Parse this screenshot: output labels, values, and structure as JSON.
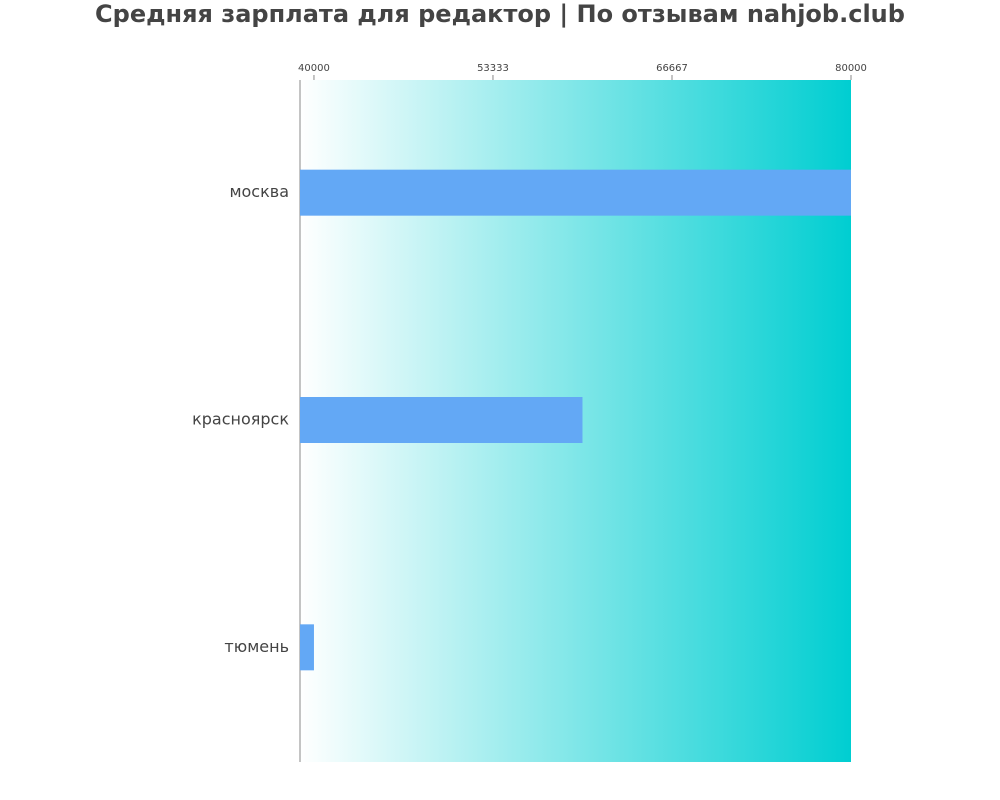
{
  "chart_data": {
    "type": "bar",
    "orientation": "horizontal",
    "title": "Средняя зарплата для редактор | По отзывам nahjob.club",
    "categories": [
      "москва",
      "красноярск",
      "тюмень"
    ],
    "values": [
      80000,
      60000,
      40000
    ],
    "color": "#63a8f5",
    "xlim": [
      38960,
      80000
    ],
    "xticks": [
      40000,
      53333,
      66667,
      80000
    ],
    "background_gradient": [
      "#ffffff",
      "#00ced1"
    ]
  }
}
